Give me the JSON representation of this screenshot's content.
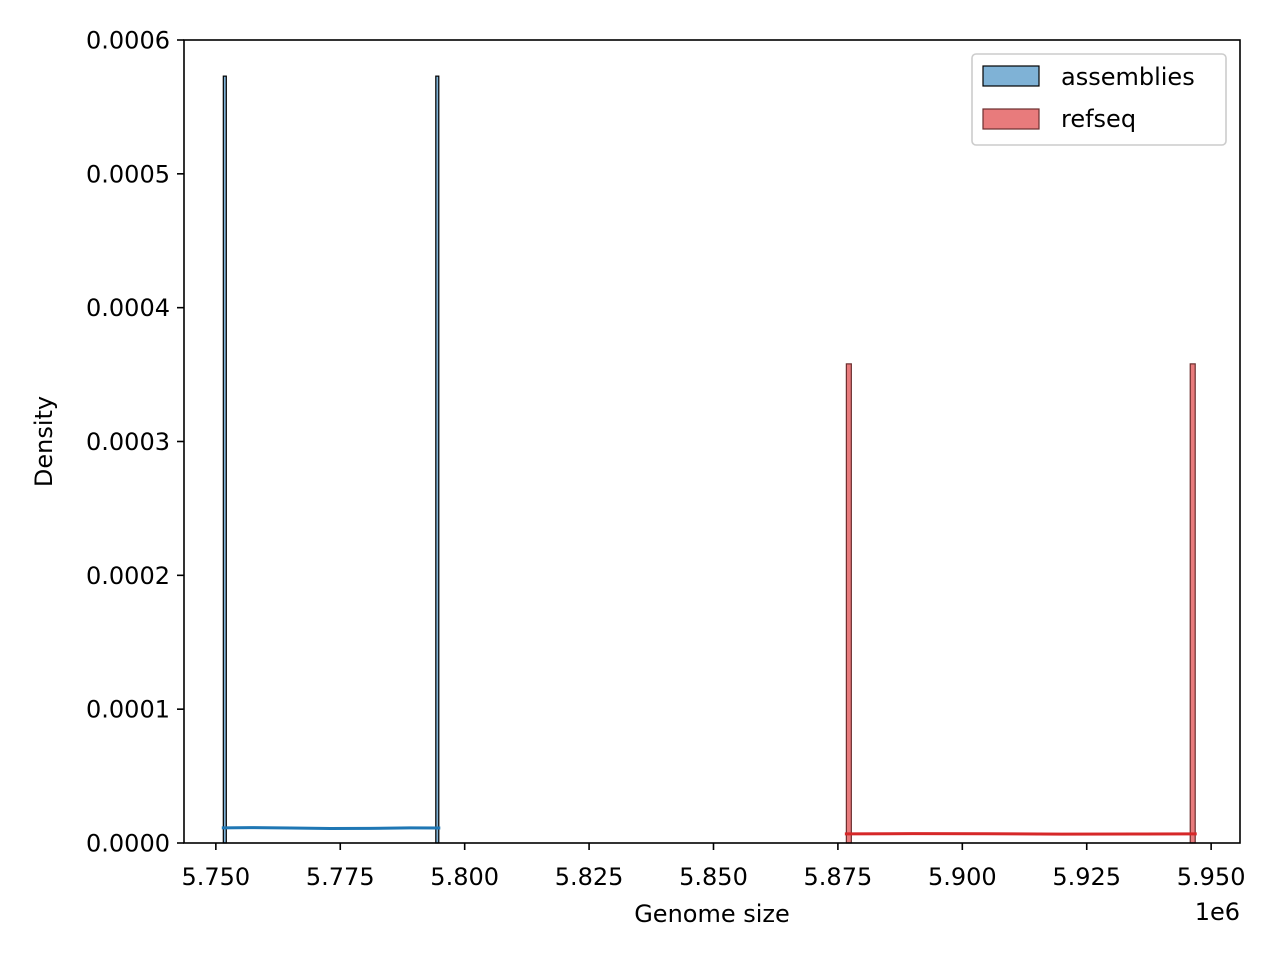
{
  "chart_data": {
    "type": "histogram",
    "xlabel": "Genome size",
    "ylabel": "Density",
    "x_offset_label": "1e6",
    "xlim": [
      5.7436,
      5.9558
    ],
    "ylim": [
      0,
      0.0006
    ],
    "x_ticks": [
      5.75,
      5.775,
      5.8,
      5.825,
      5.85,
      5.875,
      5.9,
      5.925,
      5.95
    ],
    "x_tick_labels": [
      "5.750",
      "5.775",
      "5.800",
      "5.825",
      "5.850",
      "5.875",
      "5.900",
      "5.925",
      "5.950"
    ],
    "y_ticks": [
      0,
      0.0001,
      0.0002,
      0.0003,
      0.0004,
      0.0005,
      0.0006
    ],
    "y_tick_labels": [
      "0.0000",
      "0.0001",
      "0.0002",
      "0.0003",
      "0.0004",
      "0.0005",
      "0.0006"
    ],
    "grid": false,
    "legend_position": "top-right",
    "series": [
      {
        "name": "assemblies",
        "fill_color": "#7fb2d6",
        "edge_color": "#000000",
        "line_color": "#1f77b4",
        "bars": [
          {
            "x_start": 5.7515,
            "x_end": 5.7521,
            "density": 0.000573
          },
          {
            "x_start": 5.7942,
            "x_end": 5.7948,
            "density": 0.000573
          }
        ],
        "kde": [
          {
            "x": 5.7515,
            "y": 1.13e-05
          },
          {
            "x": 5.757,
            "y": 1.15e-05
          },
          {
            "x": 5.765,
            "y": 1.12e-05
          },
          {
            "x": 5.773,
            "y": 1.08e-05
          },
          {
            "x": 5.781,
            "y": 1.09e-05
          },
          {
            "x": 5.789,
            "y": 1.13e-05
          },
          {
            "x": 5.7948,
            "y": 1.12e-05
          }
        ]
      },
      {
        "name": "refseq",
        "fill_color": "#e87b7c",
        "edge_color": "#6b2e2e",
        "line_color": "#d62728",
        "bars": [
          {
            "x_start": 5.8767,
            "x_end": 5.8777,
            "density": 0.000358
          },
          {
            "x_start": 5.9458,
            "x_end": 5.9468,
            "density": 0.000358
          }
        ],
        "kde": [
          {
            "x": 5.8767,
            "y": 6.8e-06
          },
          {
            "x": 5.89,
            "y": 7e-06
          },
          {
            "x": 5.905,
            "y": 6.9e-06
          },
          {
            "x": 5.92,
            "y": 6.6e-06
          },
          {
            "x": 5.935,
            "y": 6.7e-06
          },
          {
            "x": 5.9468,
            "y": 6.8e-06
          }
        ]
      }
    ]
  }
}
